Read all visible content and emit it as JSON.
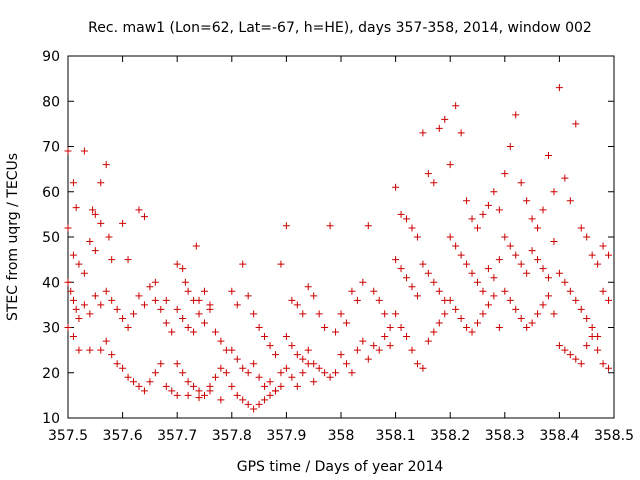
{
  "chart_data": {
    "type": "scatter",
    "title": "Rec. maw1 (Lon=62, Lat=-67, h=HE), days 357-358, 2014, window 002",
    "xlabel": "GPS time / Days of year 2014",
    "ylabel": "STEC from uqrg / TECUs",
    "xlim": [
      357.5,
      358.5
    ],
    "ylim": [
      10,
      90
    ],
    "x_ticks": [
      "357.5",
      "357.6",
      "357.7",
      "357.8",
      "357.9",
      "358",
      "358.1",
      "358.2",
      "358.3",
      "358.4",
      "358.5"
    ],
    "y_ticks": [
      "10",
      "20",
      "30",
      "40",
      "50",
      "60",
      "70",
      "80",
      "90"
    ],
    "marker": "+",
    "color": "#cc0000",
    "series": [
      {
        "name": "STEC",
        "points": [
          [
            357.5,
            69.0
          ],
          [
            357.51,
            62.0
          ],
          [
            357.515,
            56.5
          ],
          [
            357.53,
            69.0
          ],
          [
            357.545,
            56.0
          ],
          [
            357.55,
            55.0
          ],
          [
            357.56,
            62.0
          ],
          [
            357.57,
            66.0
          ],
          [
            357.575,
            50.0
          ],
          [
            357.6,
            53.0
          ],
          [
            357.63,
            56.0
          ],
          [
            357.64,
            54.5
          ],
          [
            357.5,
            52.0
          ],
          [
            357.51,
            46.0
          ],
          [
            357.52,
            44.0
          ],
          [
            357.53,
            42.0
          ],
          [
            357.54,
            49.0
          ],
          [
            357.55,
            47.0
          ],
          [
            357.56,
            53.0
          ],
          [
            357.58,
            45.0
          ],
          [
            357.61,
            45.0
          ],
          [
            357.66,
            40.0
          ],
          [
            357.68,
            36.0
          ],
          [
            357.5,
            40.0
          ],
          [
            357.505,
            38.0
          ],
          [
            357.51,
            36.0
          ],
          [
            357.515,
            34.0
          ],
          [
            357.52,
            32.0
          ],
          [
            357.53,
            35.0
          ],
          [
            357.54,
            33.0
          ],
          [
            357.55,
            37.0
          ],
          [
            357.56,
            35.0
          ],
          [
            357.57,
            38.0
          ],
          [
            357.58,
            36.0
          ],
          [
            357.59,
            34.0
          ],
          [
            357.6,
            32.0
          ],
          [
            357.61,
            30.0
          ],
          [
            357.62,
            33.0
          ],
          [
            357.63,
            37.0
          ],
          [
            357.64,
            35.0
          ],
          [
            357.65,
            39.0
          ],
          [
            357.66,
            36.0
          ],
          [
            357.67,
            34.0
          ],
          [
            357.68,
            31.0
          ],
          [
            357.69,
            29.0
          ],
          [
            357.5,
            30.0
          ],
          [
            357.51,
            28.0
          ],
          [
            357.52,
            25.0
          ],
          [
            357.54,
            25.0
          ],
          [
            357.56,
            25.0
          ],
          [
            357.57,
            27.0
          ],
          [
            357.58,
            24.0
          ],
          [
            357.59,
            22.0
          ],
          [
            357.6,
            21.0
          ],
          [
            357.61,
            19.0
          ],
          [
            357.62,
            18.0
          ],
          [
            357.63,
            17.0
          ],
          [
            357.64,
            16.0
          ],
          [
            357.65,
            18.0
          ],
          [
            357.66,
            20.0
          ],
          [
            357.67,
            22.0
          ],
          [
            357.68,
            17.0
          ],
          [
            357.69,
            16.0
          ],
          [
            357.7,
            44.0
          ],
          [
            357.71,
            43.0
          ],
          [
            357.715,
            40.0
          ],
          [
            357.72,
            38.0
          ],
          [
            357.73,
            36.0
          ],
          [
            357.735,
            48.0
          ],
          [
            357.74,
            36.0
          ],
          [
            357.75,
            38.0
          ],
          [
            357.76,
            35.0
          ],
          [
            357.7,
            34.0
          ],
          [
            357.71,
            32.0
          ],
          [
            357.72,
            30.0
          ],
          [
            357.73,
            29.0
          ],
          [
            357.74,
            33.0
          ],
          [
            357.75,
            31.0
          ],
          [
            357.76,
            34.0
          ],
          [
            357.77,
            29.0
          ],
          [
            357.78,
            27.0
          ],
          [
            357.79,
            25.0
          ],
          [
            357.7,
            22.0
          ],
          [
            357.71,
            20.0
          ],
          [
            357.72,
            18.0
          ],
          [
            357.73,
            17.0
          ],
          [
            357.74,
            16.0
          ],
          [
            357.75,
            15.0
          ],
          [
            357.76,
            17.0
          ],
          [
            357.77,
            19.0
          ],
          [
            357.78,
            21.0
          ],
          [
            357.79,
            20.0
          ],
          [
            357.7,
            15.0
          ],
          [
            357.72,
            15.0
          ],
          [
            357.74,
            14.5
          ],
          [
            357.76,
            16.0
          ],
          [
            357.78,
            14.0
          ],
          [
            357.8,
            38.0
          ],
          [
            357.81,
            35.0
          ],
          [
            357.82,
            44.0
          ],
          [
            357.83,
            37.0
          ],
          [
            357.84,
            33.0
          ],
          [
            357.85,
            30.0
          ],
          [
            357.86,
            28.0
          ],
          [
            357.87,
            26.0
          ],
          [
            357.88,
            24.0
          ],
          [
            357.89,
            44.0
          ],
          [
            357.8,
            25.0
          ],
          [
            357.81,
            23.0
          ],
          [
            357.82,
            21.0
          ],
          [
            357.83,
            20.0
          ],
          [
            357.84,
            22.0
          ],
          [
            357.85,
            19.0
          ],
          [
            357.86,
            17.0
          ],
          [
            357.87,
            18.0
          ],
          [
            357.88,
            16.0
          ],
          [
            357.89,
            20.0
          ],
          [
            357.8,
            17.0
          ],
          [
            357.81,
            15.0
          ],
          [
            357.82,
            14.0
          ],
          [
            357.83,
            13.0
          ],
          [
            357.84,
            12.0
          ],
          [
            357.85,
            13.0
          ],
          [
            357.86,
            14.0
          ],
          [
            357.87,
            15.0
          ],
          [
            357.88,
            16.0
          ],
          [
            357.89,
            17.0
          ],
          [
            357.9,
            52.5
          ],
          [
            357.91,
            36.0
          ],
          [
            357.92,
            35.0
          ],
          [
            357.93,
            33.0
          ],
          [
            357.94,
            39.0
          ],
          [
            357.95,
            37.0
          ],
          [
            357.96,
            33.0
          ],
          [
            357.97,
            30.0
          ],
          [
            357.98,
            52.5
          ],
          [
            357.99,
            29.0
          ],
          [
            357.9,
            28.0
          ],
          [
            357.91,
            26.0
          ],
          [
            357.92,
            24.0
          ],
          [
            357.93,
            23.0
          ],
          [
            357.94,
            25.0
          ],
          [
            357.95,
            22.0
          ],
          [
            357.96,
            21.0
          ],
          [
            357.97,
            20.0
          ],
          [
            357.98,
            19.0
          ],
          [
            357.99,
            20.0
          ],
          [
            357.9,
            21.0
          ],
          [
            357.91,
            19.0
          ],
          [
            357.92,
            17.0
          ],
          [
            357.93,
            20.0
          ],
          [
            357.94,
            22.0
          ],
          [
            357.95,
            18.0
          ],
          [
            358.0,
            33.0
          ],
          [
            358.01,
            31.0
          ],
          [
            358.02,
            38.0
          ],
          [
            358.03,
            36.0
          ],
          [
            358.04,
            40.0
          ],
          [
            358.05,
            52.5
          ],
          [
            358.06,
            38.0
          ],
          [
            358.07,
            36.0
          ],
          [
            358.08,
            33.0
          ],
          [
            358.09,
            30.0
          ],
          [
            358.0,
            24.0
          ],
          [
            358.01,
            22.0
          ],
          [
            358.02,
            20.0
          ],
          [
            358.03,
            25.0
          ],
          [
            358.04,
            27.0
          ],
          [
            358.05,
            23.0
          ],
          [
            358.06,
            26.0
          ],
          [
            358.07,
            25.0
          ],
          [
            358.08,
            28.0
          ],
          [
            358.09,
            26.0
          ],
          [
            358.1,
            61.0
          ],
          [
            358.11,
            55.0
          ],
          [
            358.12,
            54.0
          ],
          [
            358.13,
            52.0
          ],
          [
            358.14,
            50.0
          ],
          [
            358.15,
            73.0
          ],
          [
            358.16,
            64.0
          ],
          [
            358.17,
            62.0
          ],
          [
            358.18,
            74.0
          ],
          [
            358.19,
            76.0
          ],
          [
            358.1,
            45.0
          ],
          [
            358.11,
            43.0
          ],
          [
            358.12,
            41.0
          ],
          [
            358.13,
            39.0
          ],
          [
            358.14,
            37.0
          ],
          [
            358.15,
            44.0
          ],
          [
            358.16,
            42.0
          ],
          [
            358.17,
            40.0
          ],
          [
            358.18,
            38.0
          ],
          [
            358.19,
            36.0
          ],
          [
            358.1,
            33.0
          ],
          [
            358.11,
            30.0
          ],
          [
            358.12,
            28.0
          ],
          [
            358.13,
            25.0
          ],
          [
            358.14,
            22.0
          ],
          [
            358.15,
            21.0
          ],
          [
            358.16,
            27.0
          ],
          [
            358.17,
            29.0
          ],
          [
            358.18,
            31.0
          ],
          [
            358.19,
            33.0
          ],
          [
            358.2,
            66.0
          ],
          [
            358.21,
            79.0
          ],
          [
            358.22,
            73.0
          ],
          [
            358.23,
            58.0
          ],
          [
            358.24,
            54.0
          ],
          [
            358.25,
            52.0
          ],
          [
            358.26,
            55.0
          ],
          [
            358.27,
            57.0
          ],
          [
            358.28,
            60.0
          ],
          [
            358.29,
            56.0
          ],
          [
            358.2,
            50.0
          ],
          [
            358.21,
            48.0
          ],
          [
            358.22,
            46.0
          ],
          [
            358.23,
            44.0
          ],
          [
            358.24,
            42.0
          ],
          [
            358.25,
            40.0
          ],
          [
            358.26,
            38.0
          ],
          [
            358.27,
            43.0
          ],
          [
            358.28,
            41.0
          ],
          [
            358.29,
            45.0
          ],
          [
            358.2,
            36.0
          ],
          [
            358.21,
            34.0
          ],
          [
            358.22,
            32.0
          ],
          [
            358.23,
            30.0
          ],
          [
            358.24,
            29.0
          ],
          [
            358.25,
            31.0
          ],
          [
            358.26,
            33.0
          ],
          [
            358.27,
            35.0
          ],
          [
            358.28,
            37.0
          ],
          [
            358.29,
            30.0
          ],
          [
            358.3,
            64.0
          ],
          [
            358.31,
            70.0
          ],
          [
            358.32,
            77.0
          ],
          [
            358.33,
            62.0
          ],
          [
            358.34,
            58.0
          ],
          [
            358.35,
            54.0
          ],
          [
            358.36,
            52.0
          ],
          [
            358.37,
            56.0
          ],
          [
            358.38,
            68.0
          ],
          [
            358.39,
            60.0
          ],
          [
            358.3,
            50.0
          ],
          [
            358.31,
            48.0
          ],
          [
            358.32,
            46.0
          ],
          [
            358.33,
            44.0
          ],
          [
            358.34,
            42.0
          ],
          [
            358.35,
            47.0
          ],
          [
            358.36,
            45.0
          ],
          [
            358.37,
            43.0
          ],
          [
            358.38,
            41.0
          ],
          [
            358.39,
            49.0
          ],
          [
            358.3,
            38.0
          ],
          [
            358.31,
            36.0
          ],
          [
            358.32,
            34.0
          ],
          [
            358.33,
            32.0
          ],
          [
            358.34,
            30.0
          ],
          [
            358.35,
            31.0
          ],
          [
            358.36,
            33.0
          ],
          [
            358.37,
            35.0
          ],
          [
            358.38,
            37.0
          ],
          [
            358.39,
            33.0
          ],
          [
            358.4,
            83.0
          ],
          [
            358.41,
            63.0
          ],
          [
            358.42,
            58.0
          ],
          [
            358.43,
            75.0
          ],
          [
            358.44,
            52.0
          ],
          [
            358.45,
            50.0
          ],
          [
            358.46,
            46.0
          ],
          [
            358.47,
            44.0
          ],
          [
            358.48,
            48.0
          ],
          [
            358.49,
            46.0
          ],
          [
            358.4,
            42.0
          ],
          [
            358.41,
            40.0
          ],
          [
            358.42,
            38.0
          ],
          [
            358.43,
            36.0
          ],
          [
            358.44,
            34.0
          ],
          [
            358.45,
            32.0
          ],
          [
            358.46,
            30.0
          ],
          [
            358.47,
            28.0
          ],
          [
            358.48,
            38.0
          ],
          [
            358.49,
            36.0
          ],
          [
            358.4,
            26.0
          ],
          [
            358.41,
            25.0
          ],
          [
            358.42,
            24.0
          ],
          [
            358.43,
            23.0
          ],
          [
            358.44,
            22.0
          ],
          [
            358.45,
            26.0
          ],
          [
            358.46,
            28.0
          ],
          [
            358.47,
            25.0
          ],
          [
            358.48,
            22.0
          ],
          [
            358.49,
            21.0
          ]
        ]
      }
    ]
  }
}
